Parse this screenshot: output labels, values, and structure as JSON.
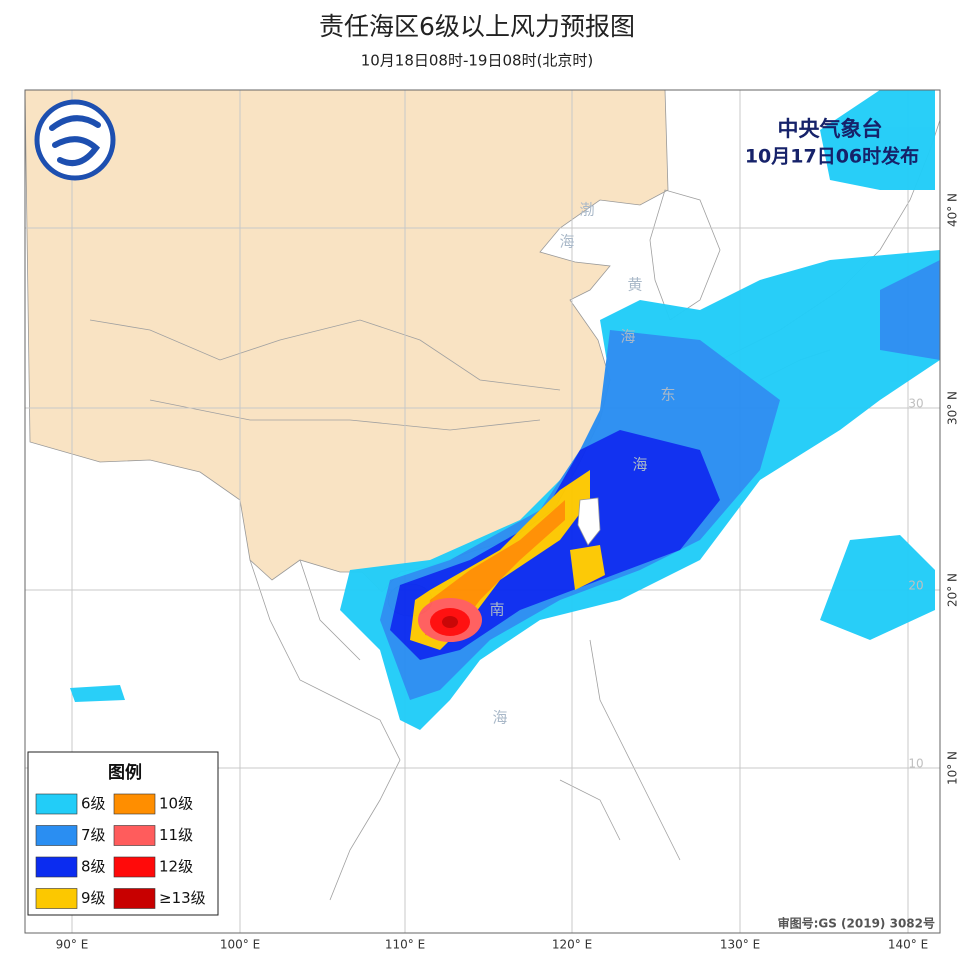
{
  "header": {
    "title": "责任海区6级以上风力预报图",
    "subtitle": "10月18日08时-19日08时(北京时)"
  },
  "issuer": {
    "name": "中央气象台",
    "time": "10月17日06时发布"
  },
  "legend": {
    "title": "图例",
    "items": [
      {
        "label": "6级",
        "color": "#22cdf8"
      },
      {
        "label": "7级",
        "color": "#2a8ef2"
      },
      {
        "label": "8级",
        "color": "#0b2cf0"
      },
      {
        "label": "9级",
        "color": "#fcc800"
      },
      {
        "label": "10级",
        "color": "#ff8e00"
      },
      {
        "label": "11级",
        "color": "#ff5c5c"
      },
      {
        "label": "12级",
        "color": "#ff0a0a"
      },
      {
        "label": "≥13级",
        "color": "#c80000"
      }
    ]
  },
  "longitude_labels": [
    "90° E",
    "100° E",
    "110° E",
    "120° E",
    "130° E",
    "140° E"
  ],
  "latitude_labels": [
    "40° N",
    "30° N",
    "20° N",
    "10° N"
  ],
  "inner_latitude_labels": [
    "30",
    "20",
    "10"
  ],
  "sea_labels": [
    "渤",
    "海",
    "黄",
    "海",
    "东",
    "海",
    "南",
    "海"
  ],
  "review_number": "审图号:GS (2019) 3082号"
}
